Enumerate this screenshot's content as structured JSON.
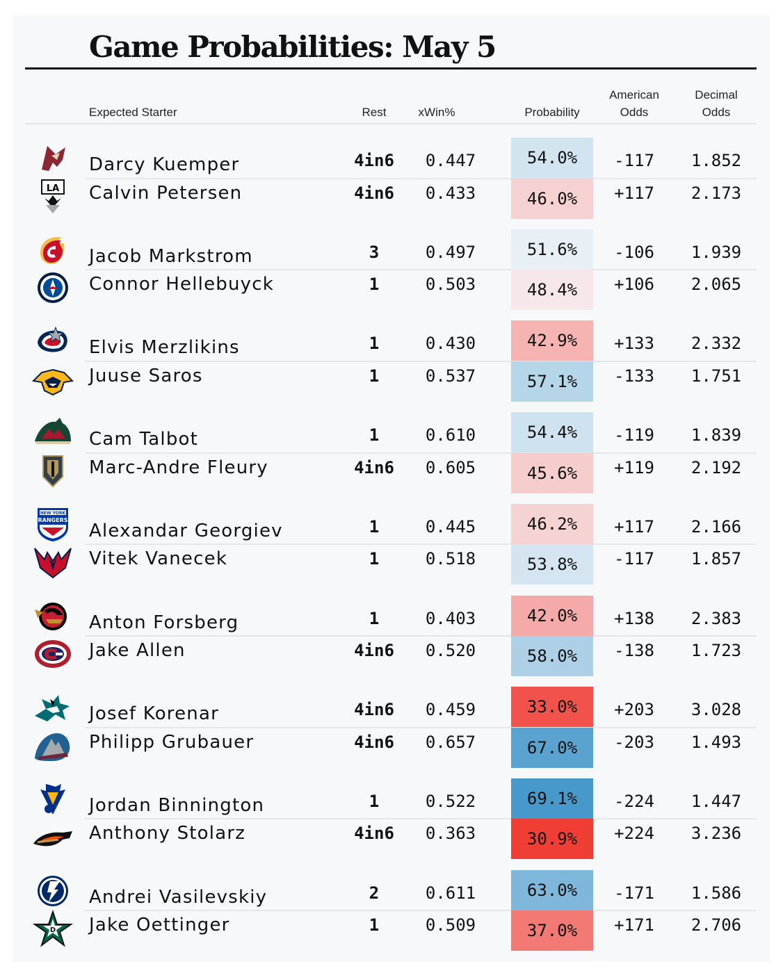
{
  "title": "Game Probabilities: May 5",
  "headers": {
    "starter": "Expected Starter",
    "rest": "Rest",
    "xwin": "xWin%",
    "probability": "Probability",
    "american_1": "American",
    "american_2": "Odds",
    "decimal_1": "Decimal",
    "decimal_2": "Odds"
  },
  "chart_data": {
    "type": "table",
    "title": "Game Probabilities: May 5",
    "columns": [
      "Expected Starter",
      "Rest",
      "xWin%",
      "Probability",
      "American Odds",
      "Decimal Odds"
    ],
    "color_scale": {
      "low": "#f0352c",
      "mid": "#f7f8fa",
      "high": "#3e94c8"
    },
    "games": [
      [
        {
          "team": "Arizona Coyotes",
          "logo": "coyotes-logo",
          "starter": "Darcy Kuemper",
          "rest": "4in6",
          "xwin": "0.447",
          "prob": 54.0,
          "prob_label": "54.0%",
          "american": "-117",
          "decimal": "1.852"
        },
        {
          "team": "Los Angeles Kings",
          "logo": "kings-logo",
          "starter": "Calvin Petersen",
          "rest": "4in6",
          "xwin": "0.433",
          "prob": 46.0,
          "prob_label": "46.0%",
          "american": "+117",
          "decimal": "2.173"
        }
      ],
      [
        {
          "team": "Calgary Flames",
          "logo": "flames-logo",
          "starter": "Jacob Markstrom",
          "rest": "3",
          "xwin": "0.497",
          "prob": 51.6,
          "prob_label": "51.6%",
          "american": "-106",
          "decimal": "1.939"
        },
        {
          "team": "Winnipeg Jets",
          "logo": "jets-logo",
          "starter": "Connor Hellebuyck",
          "rest": "1",
          "xwin": "0.503",
          "prob": 48.4,
          "prob_label": "48.4%",
          "american": "+106",
          "decimal": "2.065"
        }
      ],
      [
        {
          "team": "Columbus Blue Jackets",
          "logo": "blue-jackets-logo",
          "starter": "Elvis Merzlikins",
          "rest": "1",
          "xwin": "0.430",
          "prob": 42.9,
          "prob_label": "42.9%",
          "american": "+133",
          "decimal": "2.332"
        },
        {
          "team": "Nashville Predators",
          "logo": "predators-logo",
          "starter": "Juuse Saros",
          "rest": "1",
          "xwin": "0.537",
          "prob": 57.1,
          "prob_label": "57.1%",
          "american": "-133",
          "decimal": "1.751"
        }
      ],
      [
        {
          "team": "Minnesota Wild",
          "logo": "wild-logo",
          "starter": "Cam Talbot",
          "rest": "1",
          "xwin": "0.610",
          "prob": 54.4,
          "prob_label": "54.4%",
          "american": "-119",
          "decimal": "1.839"
        },
        {
          "team": "Vegas Golden Knights",
          "logo": "golden-knights-logo",
          "starter": "Marc-Andre Fleury",
          "rest": "4in6",
          "xwin": "0.605",
          "prob": 45.6,
          "prob_label": "45.6%",
          "american": "+119",
          "decimal": "2.192"
        }
      ],
      [
        {
          "team": "New York Rangers",
          "logo": "rangers-logo",
          "starter": "Alexandar Georgiev",
          "rest": "1",
          "xwin": "0.445",
          "prob": 46.2,
          "prob_label": "46.2%",
          "american": "+117",
          "decimal": "2.166"
        },
        {
          "team": "Washington Capitals",
          "logo": "capitals-logo",
          "starter": "Vitek Vanecek",
          "rest": "1",
          "xwin": "0.518",
          "prob": 53.8,
          "prob_label": "53.8%",
          "american": "-117",
          "decimal": "1.857"
        }
      ],
      [
        {
          "team": "Ottawa Senators",
          "logo": "senators-logo",
          "starter": "Anton Forsberg",
          "rest": "1",
          "xwin": "0.403",
          "prob": 42.0,
          "prob_label": "42.0%",
          "american": "+138",
          "decimal": "2.383"
        },
        {
          "team": "Montreal Canadiens",
          "logo": "canadiens-logo",
          "starter": "Jake Allen",
          "rest": "4in6",
          "xwin": "0.520",
          "prob": 58.0,
          "prob_label": "58.0%",
          "american": "-138",
          "decimal": "1.723"
        }
      ],
      [
        {
          "team": "San Jose Sharks",
          "logo": "sharks-logo",
          "starter": "Josef Korenar",
          "rest": "4in6",
          "xwin": "0.459",
          "prob": 33.0,
          "prob_label": "33.0%",
          "american": "+203",
          "decimal": "3.028"
        },
        {
          "team": "Colorado Avalanche",
          "logo": "avalanche-logo",
          "starter": "Philipp Grubauer",
          "rest": "4in6",
          "xwin": "0.657",
          "prob": 67.0,
          "prob_label": "67.0%",
          "american": "-203",
          "decimal": "1.493"
        }
      ],
      [
        {
          "team": "St. Louis Blues",
          "logo": "blues-logo",
          "starter": "Jordan Binnington",
          "rest": "1",
          "xwin": "0.522",
          "prob": 69.1,
          "prob_label": "69.1%",
          "american": "-224",
          "decimal": "1.447"
        },
        {
          "team": "Anaheim Ducks",
          "logo": "ducks-logo",
          "starter": "Anthony Stolarz",
          "rest": "4in6",
          "xwin": "0.363",
          "prob": 30.9,
          "prob_label": "30.9%",
          "american": "+224",
          "decimal": "3.236"
        }
      ],
      [
        {
          "team": "Tampa Bay Lightning",
          "logo": "lightning-logo",
          "starter": "Andrei Vasilevskiy",
          "rest": "2",
          "xwin": "0.611",
          "prob": 63.0,
          "prob_label": "63.0%",
          "american": "-171",
          "decimal": "1.586"
        },
        {
          "team": "Dallas Stars",
          "logo": "stars-logo",
          "starter": "Jake Oettinger",
          "rest": "1",
          "xwin": "0.509",
          "prob": 37.0,
          "prob_label": "37.0%",
          "american": "+171",
          "decimal": "2.706"
        }
      ]
    ]
  }
}
